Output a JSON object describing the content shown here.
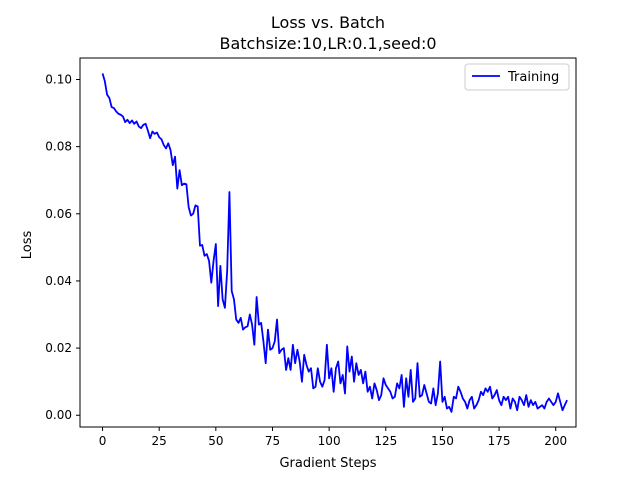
{
  "chart_data": {
    "type": "line",
    "title": "Loss vs. Batch",
    "subtitle": "Batchsize:10,LR:0.1,seed:0",
    "xlabel": "Gradient Steps",
    "ylabel": "Loss",
    "xlim": [
      -9.95,
      208.95
    ],
    "ylim": [
      -0.0035,
      0.1064
    ],
    "xticks": [
      0,
      25,
      50,
      75,
      100,
      125,
      150,
      175,
      200
    ],
    "yticks": [
      0.0,
      0.02,
      0.04,
      0.06,
      0.08,
      0.1
    ],
    "ytick_labels": [
      "0.00",
      "0.02",
      "0.04",
      "0.06",
      "0.08",
      "0.10"
    ],
    "grid": false,
    "legend": {
      "position": "top-right",
      "entries": [
        "Training"
      ]
    },
    "series": [
      {
        "name": "Training",
        "color": "#0000ff",
        "y": [
          0.1018,
          0.0995,
          0.0955,
          0.0945,
          0.0918,
          0.0915,
          0.0905,
          0.0898,
          0.0895,
          0.089,
          0.0873,
          0.088,
          0.087,
          0.0878,
          0.0868,
          0.0875,
          0.086,
          0.0855,
          0.0865,
          0.0868,
          0.0848,
          0.0825,
          0.0845,
          0.0838,
          0.0842,
          0.0828,
          0.0822,
          0.0805,
          0.0795,
          0.081,
          0.079,
          0.0745,
          0.077,
          0.0675,
          0.073,
          0.0685,
          0.069,
          0.0688,
          0.062,
          0.0595,
          0.06,
          0.0625,
          0.0622,
          0.0505,
          0.0507,
          0.0475,
          0.048,
          0.046,
          0.0395,
          0.046,
          0.051,
          0.0325,
          0.0445,
          0.0345,
          0.032,
          0.043,
          0.0665,
          0.037,
          0.0345,
          0.0285,
          0.0275,
          0.029,
          0.0255,
          0.0262,
          0.0265,
          0.03,
          0.027,
          0.021,
          0.0352,
          0.027,
          0.0275,
          0.022,
          0.0155,
          0.0255,
          0.0195,
          0.02,
          0.022,
          0.0285,
          0.0185,
          0.0195,
          0.02,
          0.0135,
          0.017,
          0.0135,
          0.021,
          0.0155,
          0.0195,
          0.016,
          0.01,
          0.018,
          0.015,
          0.013,
          0.014,
          0.008,
          0.0085,
          0.014,
          0.01,
          0.0085,
          0.0105,
          0.021,
          0.011,
          0.014,
          0.007,
          0.014,
          0.016,
          0.0095,
          0.012,
          0.0065,
          0.0205,
          0.013,
          0.0175,
          0.01,
          0.0155,
          0.012,
          0.0135,
          0.0095,
          0.013,
          0.007,
          0.0085,
          0.005,
          0.0095,
          0.0075,
          0.0045,
          0.006,
          0.011,
          0.009,
          0.008,
          0.007,
          0.005,
          0.0055,
          0.0095,
          0.008,
          0.012,
          0.0025,
          0.011,
          0.0055,
          0.0135,
          0.004,
          0.005,
          0.0155,
          0.0055,
          0.006,
          0.009,
          0.0065,
          0.004,
          0.0035,
          0.008,
          0.003,
          0.0065,
          0.016,
          0.004,
          0.0055,
          0.002,
          0.0025,
          0.001,
          0.0055,
          0.005,
          0.0085,
          0.007,
          0.005,
          0.004,
          0.002,
          0.0045,
          0.0055,
          0.002,
          0.003,
          0.0045,
          0.007,
          0.006,
          0.008,
          0.007,
          0.0085,
          0.005,
          0.006,
          0.0075,
          0.0045,
          0.003,
          0.0055,
          0.0045,
          0.0055,
          0.002,
          0.005,
          0.004,
          0.0015,
          0.0055,
          0.0045,
          0.003,
          0.006,
          0.0025,
          0.0045,
          0.003,
          0.004,
          0.002,
          0.0025,
          0.003,
          0.002,
          0.004,
          0.005,
          0.004,
          0.003,
          0.004,
          0.0065,
          0.004,
          0.0015,
          0.003,
          0.0045
        ]
      }
    ]
  }
}
